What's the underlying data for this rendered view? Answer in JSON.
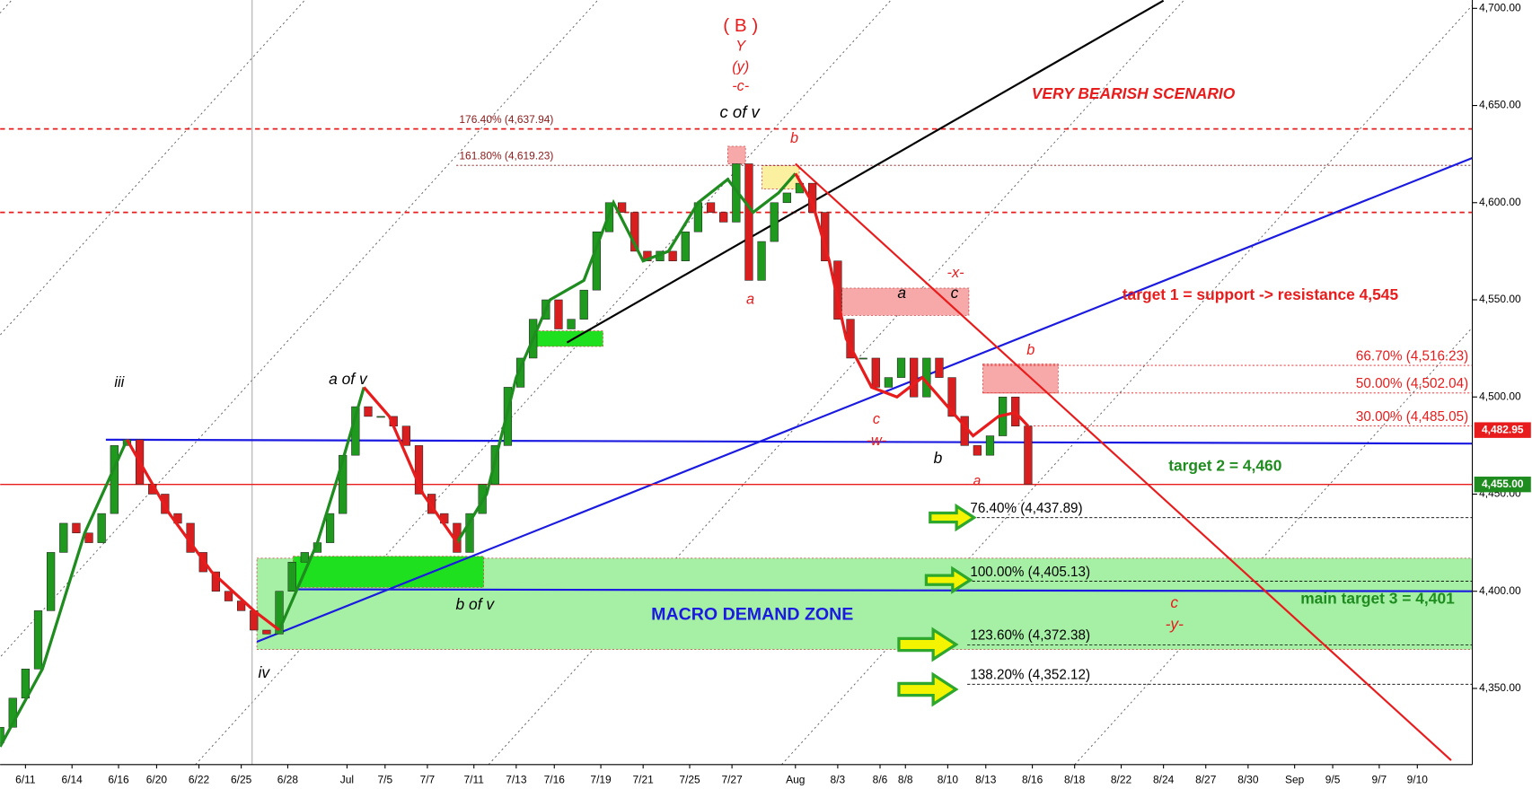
{
  "chart_data": {
    "type": "candlestick",
    "up_color": "#1f9a1f",
    "down_color": "#d81e1e",
    "xlim": [
      0,
      348
    ],
    "ylim": [
      4310.8,
      4704.3
    ],
    "xticks": [
      {
        "value": 6,
        "label": "6/11"
      },
      {
        "value": 17,
        "label": "6/14"
      },
      {
        "value": 28,
        "label": "6/16"
      },
      {
        "value": 37,
        "label": "6/20"
      },
      {
        "value": 47,
        "label": "6/22"
      },
      {
        "value": 57,
        "label": "6/25"
      },
      {
        "value": 68,
        "label": "6/28"
      },
      {
        "value": 82,
        "label": "Jul"
      },
      {
        "value": 91,
        "label": "7/5"
      },
      {
        "value": 101,
        "label": "7/7"
      },
      {
        "value": 112,
        "label": "7/11"
      },
      {
        "value": 122,
        "label": "7/13"
      },
      {
        "value": 131,
        "label": "7/16"
      },
      {
        "value": 142,
        "label": "7/19"
      },
      {
        "value": 152,
        "label": "7/21"
      },
      {
        "value": 163,
        "label": "7/25"
      },
      {
        "value": 173,
        "label": "7/27"
      },
      {
        "value": 188,
        "label": "Aug"
      },
      {
        "value": 198,
        "label": "8/3"
      },
      {
        "value": 208,
        "label": "8/6"
      },
      {
        "value": 214,
        "label": "8/8"
      },
      {
        "value": 224,
        "label": "8/10"
      },
      {
        "value": 233,
        "label": "8/13"
      },
      {
        "value": 244,
        "label": "8/16"
      },
      {
        "value": 254,
        "label": "8/18"
      },
      {
        "value": 265,
        "label": "8/22"
      },
      {
        "value": 275,
        "label": "8/24"
      },
      {
        "value": 285,
        "label": "8/27"
      },
      {
        "value": 295,
        "label": "8/30"
      },
      {
        "value": 306,
        "label": "Sep"
      },
      {
        "value": 315,
        "label": "9/5"
      },
      {
        "value": 326,
        "label": "9/7"
      },
      {
        "value": 335,
        "label": "9/10"
      }
    ],
    "yticks": [
      {
        "value": 4350,
        "label": "4,350.00"
      },
      {
        "value": 4400,
        "label": "4,400.00"
      },
      {
        "value": 4450,
        "label": "4,450.00"
      },
      {
        "value": 4500,
        "label": "4,500.00"
      },
      {
        "value": 4550,
        "label": "4,550.00"
      },
      {
        "value": 4600,
        "label": "4,600.00"
      },
      {
        "value": 4650,
        "label": "4,650.00"
      },
      {
        "value": 4700,
        "label": "4,700.00"
      }
    ],
    "x": [
      0,
      3,
      6,
      9,
      12,
      15,
      18,
      21,
      24,
      27,
      30,
      33,
      36,
      39,
      42,
      45,
      48,
      51,
      54,
      57,
      60,
      63,
      66,
      69,
      72,
      75,
      78,
      81,
      84,
      87,
      90,
      93,
      96,
      99,
      102,
      105,
      108,
      111,
      114,
      117,
      120,
      123,
      126,
      129,
      132,
      135,
      138,
      141,
      144,
      147,
      150,
      153,
      156,
      159,
      162,
      165,
      168,
      171,
      174,
      177,
      180,
      183,
      186,
      189,
      192,
      195,
      198,
      201,
      204,
      207,
      210,
      213,
      216,
      219,
      222,
      225,
      228,
      231,
      234,
      237,
      240,
      243
    ],
    "open": [
      4322,
      4330,
      4345,
      4360,
      4390,
      4420,
      4435,
      4430,
      4425,
      4440,
      4475,
      4478,
      4455,
      4450,
      4440,
      4435,
      4420,
      4410,
      4400,
      4395,
      4390,
      4380,
      4378,
      4400,
      4415,
      4420,
      4425,
      4440,
      4470,
      4495,
      4490,
      4490,
      4485,
      4475,
      4450,
      4440,
      4435,
      4420,
      4440,
      4455,
      4475,
      4505,
      4520,
      4540,
      4550,
      4535,
      4540,
      4555,
      4585,
      4600,
      4595,
      4575,
      4570,
      4575,
      4570,
      4585,
      4600,
      4595,
      4590,
      4620,
      4560,
      4580,
      4600,
      4605,
      4610,
      4595,
      4570,
      4540,
      4520,
      4520,
      4505,
      4510,
      4520,
      4500,
      4520,
      4510,
      4490,
      4475,
      4470,
      4480,
      4500,
      4485
    ],
    "close": [
      4330,
      4345,
      4360,
      4390,
      4420,
      4435,
      4430,
      4425,
      4440,
      4475,
      4478,
      4455,
      4450,
      4440,
      4435,
      4420,
      4410,
      4400,
      4395,
      4390,
      4380,
      4378,
      4400,
      4415,
      4420,
      4425,
      4440,
      4470,
      4495,
      4490,
      4490,
      4485,
      4475,
      4450,
      4440,
      4435,
      4420,
      4440,
      4455,
      4475,
      4505,
      4520,
      4540,
      4550,
      4535,
      4540,
      4555,
      4585,
      4600,
      4595,
      4575,
      4570,
      4575,
      4570,
      4585,
      4600,
      4595,
      4590,
      4620,
      4560,
      4580,
      4600,
      4605,
      4610,
      4595,
      4570,
      4540,
      4520,
      4520,
      4505,
      4510,
      4520,
      4500,
      4520,
      4510,
      4490,
      4475,
      4470,
      4480,
      4500,
      4485,
      4455
    ],
    "ma_x": [
      0,
      10,
      20,
      30,
      40,
      50,
      60,
      66,
      75,
      80,
      86,
      92,
      100,
      108,
      115,
      122,
      130,
      138,
      145,
      152,
      158,
      165,
      172,
      178,
      184,
      188,
      192,
      196,
      200,
      206,
      212,
      218,
      224,
      230,
      236,
      240,
      243
    ],
    "moving_averages": [
      {
        "color": "#1e8c1e",
        "values": [
          4320,
          4360,
          4430,
          4478,
          null,
          null,
          null,
          4380,
          4425,
          4460,
          4505,
          null,
          null,
          4425,
          4450,
          4510,
          4550,
          4560,
          4600,
          4570,
          4575,
          4600,
          4612,
          4595,
          4605,
          4615,
          null,
          null,
          null,
          null,
          null,
          null,
          null,
          null,
          null,
          null,
          null
        ]
      },
      {
        "color": "#e81c1c",
        "values": [
          null,
          null,
          null,
          4478,
          4440,
          4410,
          4390,
          4380,
          null,
          null,
          4505,
          4490,
          4450,
          4425,
          null,
          null,
          null,
          null,
          null,
          null,
          null,
          null,
          null,
          null,
          null,
          4615,
          4600,
          4570,
          4530,
          4505,
          4500,
          4510,
          4495,
          4480,
          4490,
          4492,
          4485
        ]
      }
    ],
    "zones": [
      {
        "color": "#a6f0a6",
        "x": [
          60.7,
          348
        ],
        "y": [
          4370,
          4417
        ]
      },
      {
        "color": "#1fe01f",
        "x": [
          69.3,
          114.3
        ],
        "y": [
          4402,
          4418
        ]
      },
      {
        "color": "#1fe01f",
        "x": [
          125.4,
          142.5
        ],
        "y": [
          4526,
          4534
        ]
      },
      {
        "color": "#f7a9a9",
        "x": [
          172,
          176.2
        ],
        "y": [
          4620,
          4629
        ]
      },
      {
        "color": "#f7a9a9",
        "x": [
          199,
          229
        ],
        "y": [
          4542,
          4556
        ]
      },
      {
        "color": "#f7a9a9",
        "x": [
          232.3,
          250.1
        ],
        "y": [
          4502,
          4517
        ]
      },
      {
        "color": "#fbf0a0",
        "x": [
          180.1,
          188.9
        ],
        "y": [
          4607,
          4619
        ]
      }
    ],
    "trendlines": [
      {
        "color": "#000000",
        "x": [
          134,
          275
        ],
        "y": [
          4528,
          4704
        ]
      },
      {
        "color": "#1a1ae0",
        "x": [
          60.7,
          348
        ],
        "y": [
          4374,
          4623
        ]
      },
      {
        "color": "#1a1ae0",
        "x": [
          25,
          348
        ],
        "y": [
          4478,
          4476
        ]
      },
      {
        "color": "#1a1ae0",
        "x": [
          69.3,
          348
        ],
        "y": [
          4401,
          4400
        ]
      },
      {
        "color": "#e81c1c",
        "x": [
          188,
          343
        ],
        "y": [
          4620,
          4313
        ]
      },
      {
        "color": "#e81c1c",
        "x": [
          0,
          348
        ],
        "y": [
          4455,
          4455
        ]
      }
    ],
    "reference_lines": [
      {
        "color": "#e81c1c",
        "value": 4595
      }
    ],
    "fib_levels": [
      {
        "value": 4637.94,
        "label": "176.40% (4,637.94)"
      },
      {
        "value": 4619.23,
        "label": "161.80% (4,619.23)"
      },
      {
        "value": 4516.23,
        "label": "66.70% (4,516.23)"
      },
      {
        "value": 4502.04,
        "label": "50.00% (4,502.04)"
      },
      {
        "value": 4485.05,
        "label": "30.00% (4,485.05)"
      },
      {
        "value": 4437.89,
        "label": "76.40% (4,437.89)"
      },
      {
        "value": 4405.13,
        "label": "100.00% (4,405.13)"
      },
      {
        "value": 4372.38,
        "label": "123.60% (4,372.38)"
      },
      {
        "value": 4352.12,
        "label": "138.20% (4,352.12)"
      }
    ],
    "price_labels": [
      {
        "value": 4482.95,
        "label": "4,482.95",
        "color": "#e81c1c"
      },
      {
        "value": 4455,
        "label": "4,455.00",
        "color": "#1e8c1e"
      }
    ],
    "annotations": [
      {
        "text": "( B )",
        "color": "#e81c1c"
      },
      {
        "text": "Y",
        "color": "#e81c1c"
      },
      {
        "text": "(y)",
        "color": "#e81c1c"
      },
      {
        "text": "-c-",
        "color": "#e81c1c"
      },
      {
        "text": "c of v",
        "color": "#000000"
      },
      {
        "text": "b",
        "color": "#e81c1c"
      },
      {
        "text": "a",
        "color": "#e81c1c"
      },
      {
        "text": "VERY BEARISH SCENARIO",
        "color": "#e81c1c"
      },
      {
        "text": "-x-",
        "color": "#e81c1c"
      },
      {
        "text": "a",
        "color": "#000000"
      },
      {
        "text": "c",
        "color": "#000000"
      },
      {
        "text": "target 1 = support -> resistance 4,545",
        "color": "#e81c1c"
      },
      {
        "text": "b",
        "color": "#e81c1c"
      },
      {
        "text": "c",
        "color": "#e81c1c"
      },
      {
        "text": "-w-",
        "color": "#e81c1c"
      },
      {
        "text": "b",
        "color": "#000000"
      },
      {
        "text": "a",
        "color": "#e81c1c"
      },
      {
        "text": "target 2 = 4,460",
        "color": "#1e8c1e"
      },
      {
        "text": "iii",
        "color": "#000000"
      },
      {
        "text": "a of v",
        "color": "#000000"
      },
      {
        "text": "b of v",
        "color": "#000000"
      },
      {
        "text": "iv",
        "color": "#000000"
      },
      {
        "text": "MACRO DEMAND ZONE",
        "color": "#1a1ae0"
      },
      {
        "text": "main target 3 = 4,401",
        "color": "#1e8c1e"
      },
      {
        "text": "c",
        "color": "#e81c1c"
      },
      {
        "text": "-y-",
        "color": "#e81c1c"
      }
    ]
  }
}
